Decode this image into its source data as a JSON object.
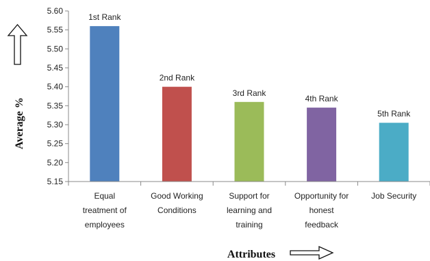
{
  "chart_data": {
    "type": "bar",
    "title": "",
    "xlabel": "Attributes",
    "ylabel": "Average %",
    "ylim": [
      5.15,
      5.6
    ],
    "yticks": [
      "5.15",
      "5.20",
      "5.25",
      "5.30",
      "5.35",
      "5.40",
      "5.45",
      "5.50",
      "5.55",
      "5.60"
    ],
    "grid": false,
    "categories": [
      [
        "Equal",
        "treatment of",
        "employees"
      ],
      [
        "Good Working",
        "Conditions"
      ],
      [
        "Support for",
        "learning and",
        "training"
      ],
      [
        "Opportunity for",
        "honest",
        "feedback"
      ],
      [
        "Job Security"
      ]
    ],
    "values": [
      5.56,
      5.4,
      5.36,
      5.345,
      5.305
    ],
    "data_labels": [
      "1st Rank",
      "2nd Rank",
      "3rd Rank",
      "4th Rank",
      "5th Rank"
    ],
    "colors": [
      "#4f81bd",
      "#c0504d",
      "#9bbb59",
      "#8064a2",
      "#4bacc6"
    ],
    "icons": {
      "y_axis_arrow": "up-arrow-icon",
      "x_axis_arrow": "right-arrow-icon"
    }
  }
}
